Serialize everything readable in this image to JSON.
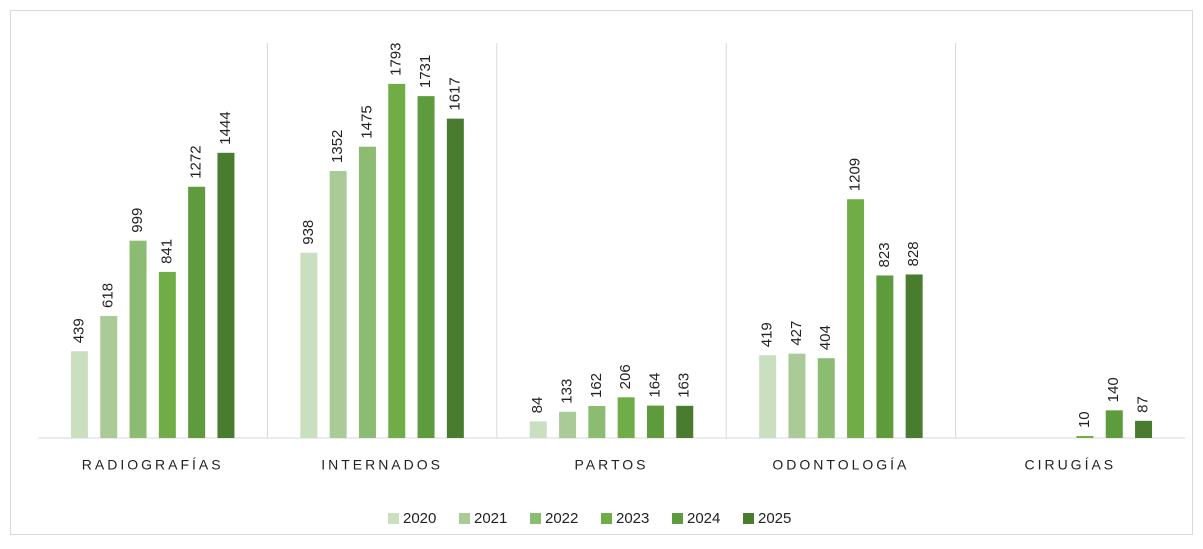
{
  "chart_data": {
    "type": "bar",
    "categories": [
      "RADIOGRAFÍAS",
      "INTERNADOS",
      "PARTOS",
      "ODONTOLOGÍA",
      "CIRUGÍAS"
    ],
    "series": [
      {
        "name": "2020",
        "color": "#c9dfc0",
        "values": [
          439,
          938,
          84,
          419,
          null
        ]
      },
      {
        "name": "2021",
        "color": "#aacb98",
        "values": [
          618,
          1352,
          133,
          427,
          null
        ]
      },
      {
        "name": "2022",
        "color": "#8cbb72",
        "values": [
          999,
          1475,
          162,
          404,
          null
        ]
      },
      {
        "name": "2023",
        "color": "#70ad47",
        "values": [
          841,
          1793,
          206,
          1209,
          10
        ]
      },
      {
        "name": "2024",
        "color": "#5e9b3d",
        "values": [
          1272,
          1731,
          164,
          823,
          140
        ]
      },
      {
        "name": "2025",
        "color": "#4a7c30",
        "values": [
          1444,
          1617,
          163,
          828,
          87
        ]
      }
    ],
    "ylim": [
      0,
      2000
    ],
    "legend": "bottom"
  }
}
